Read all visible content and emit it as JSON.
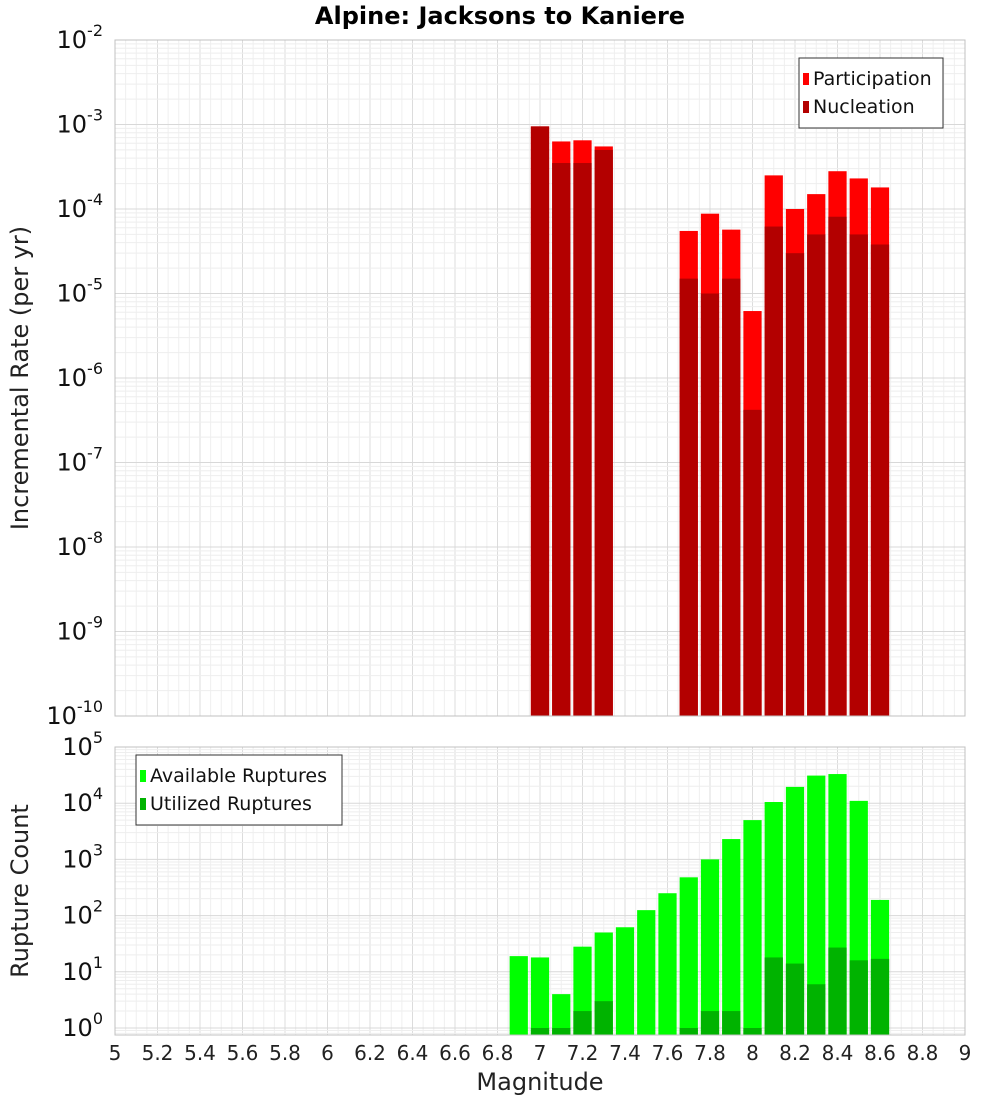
{
  "title": "Alpine: Jacksons to Kaniere",
  "xlabel": "Magnitude",
  "chart_data": [
    {
      "type": "bar",
      "ylabel": "Incremental Rate (per yr)",
      "yscale": "log",
      "ylim": [
        1e-10,
        0.01
      ],
      "xlim": [
        5,
        9
      ],
      "xticks": [
        "5",
        "5.2",
        "5.4",
        "5.6",
        "5.8",
        "6",
        "6.2",
        "6.4",
        "6.6",
        "6.8",
        "7",
        "7.2",
        "7.4",
        "7.6",
        "7.8",
        "8",
        "8.2",
        "8.4",
        "8.6",
        "8.8",
        "9"
      ],
      "yticks": [
        {
          "base": "10",
          "exp": "-10"
        },
        {
          "base": "10",
          "exp": "-9"
        },
        {
          "base": "10",
          "exp": "-8"
        },
        {
          "base": "10",
          "exp": "-7"
        },
        {
          "base": "10",
          "exp": "-6"
        },
        {
          "base": "10",
          "exp": "-5"
        },
        {
          "base": "10",
          "exp": "-4"
        },
        {
          "base": "10",
          "exp": "-3"
        },
        {
          "base": "10",
          "exp": "-2"
        }
      ],
      "legend_position": "top-right",
      "bin_width": 0.1,
      "x": [
        7.0,
        7.1,
        7.2,
        7.3,
        7.7,
        7.8,
        7.9,
        8.0,
        8.1,
        8.2,
        8.3,
        8.4,
        8.5,
        8.6
      ],
      "series": [
        {
          "name": "Participation",
          "color": "#ff0000",
          "values": [
            0.00095,
            0.00063,
            0.00065,
            0.00055,
            5.5e-05,
            8.8e-05,
            5.7e-05,
            6.2e-06,
            0.00025,
            0.0001,
            0.00015,
            0.00028,
            0.00023,
            0.00018
          ]
        },
        {
          "name": "Nucleation",
          "color": "#b30000",
          "values": [
            0.00095,
            0.00035,
            0.00035,
            0.0005,
            1.5e-05,
            1e-05,
            1.5e-05,
            4.2e-07,
            6.2e-05,
            3e-05,
            5e-05,
            8.1e-05,
            5e-05,
            3.8e-05
          ]
        }
      ]
    },
    {
      "type": "bar",
      "ylabel": "Rupture Count",
      "yscale": "log",
      "ylim": [
        0.75,
        100000
      ],
      "xlim": [
        5,
        9
      ],
      "yticks": [
        {
          "base": "10",
          "exp": "0"
        },
        {
          "base": "10",
          "exp": "1"
        },
        {
          "base": "10",
          "exp": "2"
        },
        {
          "base": "10",
          "exp": "3"
        },
        {
          "base": "10",
          "exp": "4"
        },
        {
          "base": "10",
          "exp": "5"
        }
      ],
      "legend_position": "top-left",
      "bin_width": 0.1,
      "x": [
        6.9,
        7.0,
        7.1,
        7.2,
        7.3,
        7.4,
        7.5,
        7.6,
        7.7,
        7.8,
        7.9,
        8.0,
        8.1,
        8.2,
        8.3,
        8.4,
        8.5,
        8.6
      ],
      "series": [
        {
          "name": "Available Ruptures",
          "color": "#00ff00",
          "values": [
            19,
            18,
            4,
            28,
            50,
            62,
            125,
            250,
            480,
            1000,
            2300,
            5000,
            10500,
            19500,
            31000,
            33000,
            11000,
            190
          ]
        },
        {
          "name": "Utilized Ruptures",
          "color": "#00b300",
          "values": [
            0,
            1,
            1,
            2,
            3,
            0,
            0,
            0,
            1,
            2,
            2,
            1,
            18,
            14,
            6,
            27,
            16,
            17
          ]
        }
      ]
    }
  ]
}
